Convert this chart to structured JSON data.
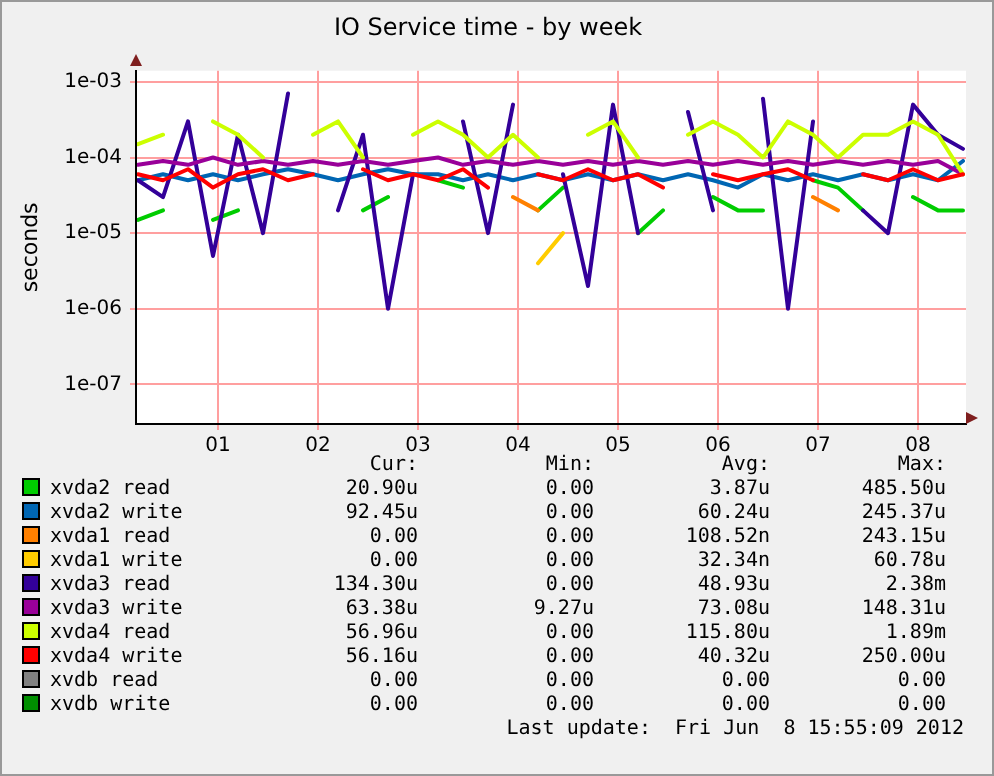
{
  "chart_data": {
    "type": "line",
    "title": "IO Service time - by week",
    "ylabel": "seconds",
    "log": "y",
    "grid": true,
    "legend": "bottom",
    "marker": "none",
    "line_style": "solid",
    "x": [
      0.2,
      0.45,
      0.7,
      0.95,
      1.2,
      1.45,
      1.7,
      1.95,
      2.2,
      2.45,
      2.7,
      2.95,
      3.2,
      3.45,
      3.7,
      3.95,
      4.2,
      4.45,
      4.7,
      4.95,
      5.2,
      5.45,
      5.7,
      5.95,
      6.2,
      6.45,
      6.7,
      6.95,
      7.2,
      7.45,
      7.7,
      7.95,
      8.2,
      8.45
    ],
    "xlim": [
      0.18,
      8.48
    ],
    "xticks": [
      {
        "value": 1,
        "label": "01"
      },
      {
        "value": 2,
        "label": "02"
      },
      {
        "value": 3,
        "label": "03"
      },
      {
        "value": 4,
        "label": "04"
      },
      {
        "value": 5,
        "label": "05"
      },
      {
        "value": 6,
        "label": "06"
      },
      {
        "value": 7,
        "label": "07"
      },
      {
        "value": 8,
        "label": "08"
      }
    ],
    "ylim": [
      3e-08,
      0.0014
    ],
    "yticks": [
      {
        "value": 1e-07,
        "label": "1e-07"
      },
      {
        "value": 1e-06,
        "label": "1e-06"
      },
      {
        "value": 1e-05,
        "label": "1e-05"
      },
      {
        "value": 0.0001,
        "label": "1e-04"
      },
      {
        "value": 0.001,
        "label": "1e-03"
      }
    ],
    "series": [
      {
        "name": "xvda2 read",
        "color": "#00cc00",
        "values": [
          1.5e-05,
          2e-05,
          null,
          1.5e-05,
          2e-05,
          null,
          null,
          null,
          null,
          2e-05,
          3e-05,
          null,
          5e-05,
          4e-05,
          null,
          null,
          2e-05,
          4e-05,
          null,
          null,
          1e-05,
          2e-05,
          null,
          3e-05,
          2e-05,
          2e-05,
          null,
          5e-05,
          4e-05,
          2e-05,
          null,
          3e-05,
          2e-05,
          2e-05
        ]
      },
      {
        "name": "xvda2 write",
        "color": "#0066b3",
        "values": [
          5e-05,
          6e-05,
          5e-05,
          6e-05,
          5e-05,
          6e-05,
          7e-05,
          6e-05,
          5e-05,
          6e-05,
          7e-05,
          6e-05,
          6e-05,
          5e-05,
          6e-05,
          5e-05,
          6e-05,
          5e-05,
          6e-05,
          5e-05,
          6e-05,
          5e-05,
          6e-05,
          5e-05,
          4e-05,
          6e-05,
          5e-05,
          6e-05,
          5e-05,
          6e-05,
          5e-05,
          6e-05,
          5e-05,
          9e-05
        ]
      },
      {
        "name": "xvda1 read",
        "color": "#ff8000",
        "values": [
          null,
          null,
          null,
          null,
          null,
          null,
          null,
          null,
          null,
          null,
          null,
          null,
          null,
          null,
          null,
          3e-05,
          2e-05,
          null,
          null,
          null,
          null,
          null,
          null,
          null,
          null,
          null,
          null,
          3e-05,
          2e-05,
          null,
          null,
          null,
          null,
          null
        ]
      },
      {
        "name": "xvda1 write",
        "color": "#ffcc00",
        "values": [
          null,
          null,
          null,
          null,
          null,
          null,
          null,
          null,
          null,
          null,
          null,
          null,
          null,
          null,
          null,
          null,
          4e-06,
          1e-05,
          null,
          null,
          null,
          null,
          null,
          null,
          null,
          null,
          null,
          null,
          null,
          null,
          null,
          null,
          null,
          null
        ]
      },
      {
        "name": "xvda3 read",
        "color": "#330099",
        "values": [
          5e-05,
          3e-05,
          0.0003,
          5e-06,
          0.0002,
          1e-05,
          0.0007,
          null,
          2e-05,
          0.0002,
          1e-06,
          6e-05,
          null,
          0.0003,
          1e-05,
          0.0005,
          null,
          6e-05,
          2e-06,
          0.0005,
          1e-05,
          null,
          0.0004,
          2e-05,
          null,
          0.0006,
          1e-06,
          0.0003,
          null,
          2e-05,
          1e-05,
          0.0005,
          0.0002,
          0.00013
        ]
      },
      {
        "name": "xvda3 write",
        "color": "#990099",
        "values": [
          8e-05,
          9e-05,
          8e-05,
          0.0001,
          8e-05,
          9e-05,
          8e-05,
          9e-05,
          8e-05,
          9e-05,
          8e-05,
          9e-05,
          0.0001,
          8e-05,
          9e-05,
          8e-05,
          9e-05,
          8e-05,
          9e-05,
          8e-05,
          9e-05,
          8e-05,
          9e-05,
          8e-05,
          9e-05,
          8e-05,
          9e-05,
          8e-05,
          9e-05,
          8e-05,
          9e-05,
          8e-05,
          9e-05,
          6e-05
        ]
      },
      {
        "name": "xvda4 read",
        "color": "#ccff00",
        "values": [
          0.00015,
          0.0002,
          null,
          0.0003,
          0.0002,
          0.0001,
          null,
          0.0002,
          0.0003,
          0.0001,
          null,
          0.0002,
          0.0003,
          0.0002,
          0.0001,
          0.0002,
          0.0001,
          null,
          0.0002,
          0.0003,
          0.0001,
          null,
          0.0002,
          0.0003,
          0.0002,
          0.0001,
          0.0003,
          0.0002,
          0.0001,
          0.0002,
          0.0002,
          0.0003,
          0.0002,
          6e-05
        ]
      },
      {
        "name": "xvda4 write",
        "color": "#ff0000",
        "values": [
          6e-05,
          5e-05,
          7e-05,
          4e-05,
          6e-05,
          7e-05,
          5e-05,
          6e-05,
          null,
          7e-05,
          5e-05,
          6e-05,
          5e-05,
          7e-05,
          4e-05,
          null,
          6e-05,
          5e-05,
          7e-05,
          5e-05,
          6e-05,
          4e-05,
          null,
          6e-05,
          5e-05,
          6e-05,
          7e-05,
          5e-05,
          null,
          6e-05,
          5e-05,
          7e-05,
          5e-05,
          6e-05
        ]
      },
      {
        "name": "xvdb read",
        "color": "#808080",
        "values": [
          null,
          null,
          null,
          null,
          null,
          null,
          null,
          null,
          null,
          null,
          null,
          null,
          null,
          null,
          null,
          null,
          null,
          null,
          null,
          null,
          null,
          null,
          null,
          null,
          null,
          null,
          null,
          null,
          null,
          null,
          null,
          null,
          null,
          null
        ]
      },
      {
        "name": "xvdb write",
        "color": "#008f00",
        "values": [
          null,
          null,
          null,
          null,
          null,
          null,
          null,
          null,
          null,
          null,
          null,
          null,
          null,
          null,
          null,
          null,
          null,
          null,
          null,
          null,
          null,
          null,
          null,
          null,
          null,
          null,
          null,
          null,
          null,
          null,
          null,
          null,
          null,
          null
        ]
      }
    ],
    "annotations": [
      "Cur:",
      "Min:",
      "Avg:",
      "Max:",
      "20.90u",
      "0.00",
      "3.87u",
      "485.50u",
      "92.45u",
      "0.00",
      "60.24u",
      "245.37u",
      "0.00",
      "0.00",
      "108.52n",
      "243.15u",
      "0.00",
      "0.00",
      "32.34n",
      "60.78u",
      "134.30u",
      "0.00",
      "48.93u",
      "2.38m",
      "63.38u",
      "9.27u",
      "73.08u",
      "148.31u",
      "56.96u",
      "0.00",
      "115.80u",
      "1.89m",
      "56.16u",
      "0.00",
      "40.32u",
      "250.00u",
      "0.00",
      "0.00",
      "0.00",
      "0.00",
      "0.00",
      "0.00",
      "0.00",
      "0.00",
      "Last update:  Fri Jun  8 15:55:09 2012"
    ]
  }
}
